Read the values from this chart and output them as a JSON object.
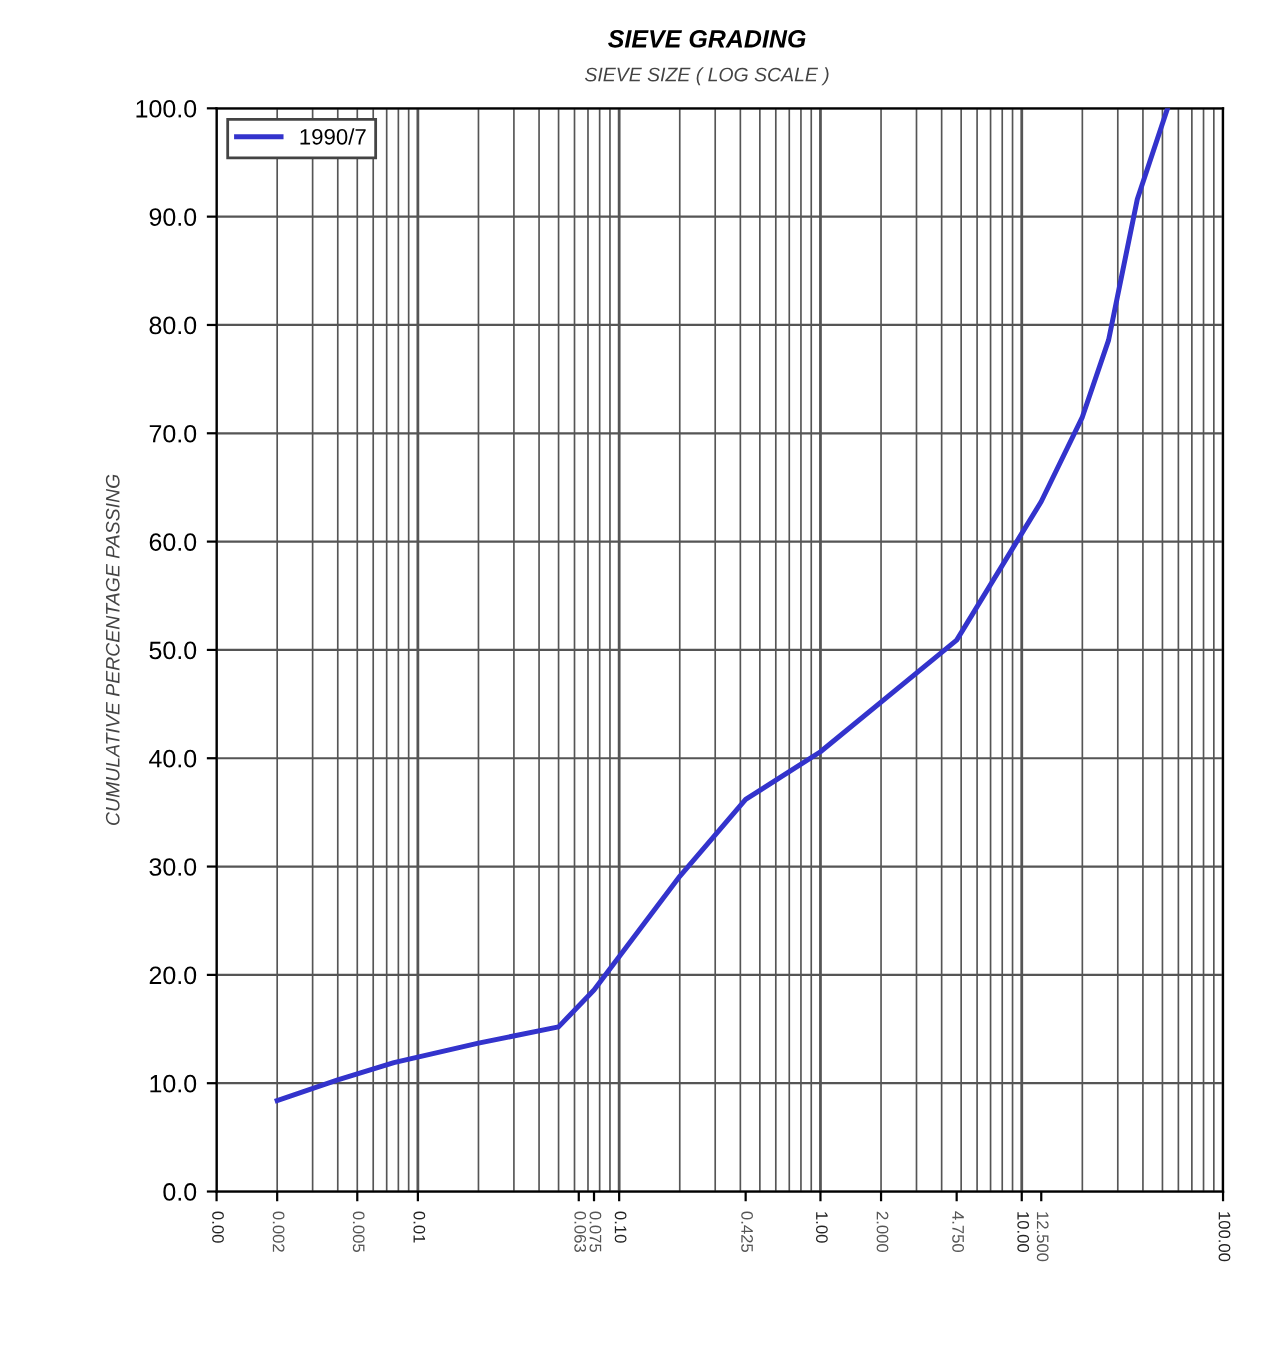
{
  "chart_data": {
    "type": "line",
    "title": "SIEVE GRADING",
    "subtitle": "SIEVE SIZE ( LOG SCALE )",
    "ylabel": "CUMULATIVE PERCENTAGE PASSING",
    "series": [
      {
        "name": "1990/7",
        "color": "#3333cc",
        "x": [
          0.002,
          0.004,
          0.0076,
          0.02,
          0.05,
          0.075,
          0.2,
          0.425,
          1.0,
          4.75,
          12.5,
          20,
          27,
          37.5,
          53
        ],
        "values": [
          8.4,
          10.3,
          11.9,
          13.7,
          15.2,
          18.6,
          29.1,
          36.2,
          40.6,
          50.9,
          63.7,
          71.5,
          78.6,
          91.6,
          100.0
        ]
      }
    ],
    "log": "x",
    "xlim": [
      0.001,
      100
    ],
    "ylim": [
      0,
      100
    ],
    "xticks": [
      {
        "value": 0.001,
        "label": "0.00"
      },
      {
        "value": 0.002,
        "label": "0.002"
      },
      {
        "value": 0.005,
        "label": "0.005"
      },
      {
        "value": 0.01,
        "label": "0.01"
      },
      {
        "value": 0.063,
        "label": "0.063"
      },
      {
        "value": 0.075,
        "label": "0.075"
      },
      {
        "value": 0.1,
        "label": "0.10"
      },
      {
        "value": 0.425,
        "label": "0.425"
      },
      {
        "value": 1,
        "label": "1.00"
      },
      {
        "value": 2,
        "label": "2.000"
      },
      {
        "value": 4.75,
        "label": "4.750"
      },
      {
        "value": 10,
        "label": "10.00"
      },
      {
        "value": 12.5,
        "label": "12.500"
      },
      {
        "value": 100,
        "label": "100.00"
      }
    ],
    "yticks": [
      {
        "value": 0,
        "label": "0.0"
      },
      {
        "value": 10,
        "label": "10.0"
      },
      {
        "value": 20,
        "label": "20.0"
      },
      {
        "value": 30,
        "label": "30.0"
      },
      {
        "value": 40,
        "label": "40.0"
      },
      {
        "value": 50,
        "label": "50.0"
      },
      {
        "value": 60,
        "label": "60.0"
      },
      {
        "value": 70,
        "label": "70.0"
      },
      {
        "value": 80,
        "label": "80.0"
      },
      {
        "value": 90,
        "label": "90.0"
      },
      {
        "value": 100,
        "label": "100.0"
      }
    ],
    "grid": true,
    "legend": "top left",
    "marker": "none",
    "line_style": "solid"
  }
}
